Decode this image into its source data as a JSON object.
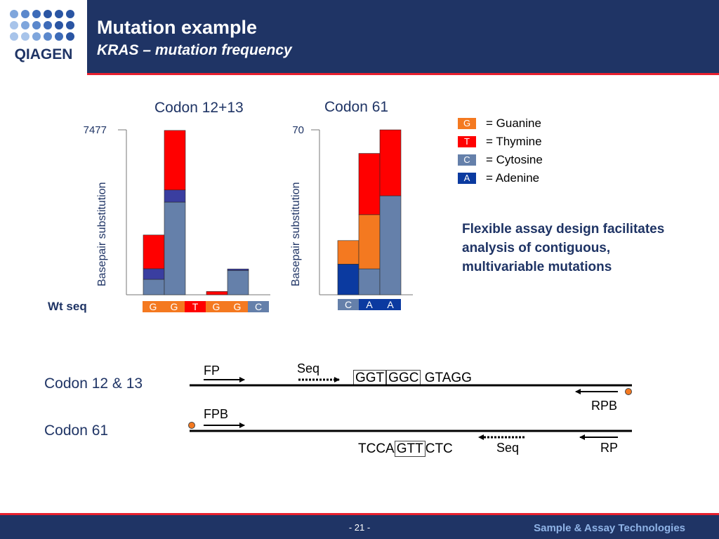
{
  "header": {
    "logo_text": "QIAGEN",
    "title": "Mutation example",
    "subtitle": "KRAS – mutation frequency",
    "colors": {
      "background": "#1f3465",
      "accent_line": "#e8202e"
    }
  },
  "footer": {
    "page_number": "- 21 -",
    "tagline": "Sample & Assay Technologies"
  },
  "legend": [
    {
      "letter": "G",
      "name": "= Guanine",
      "color": "#f47920"
    },
    {
      "letter": "T",
      "name": "= Thymine",
      "color": "#ff0000"
    },
    {
      "letter": "C",
      "name": "= Cytosine",
      "color": "#6580aa"
    },
    {
      "letter": "A",
      "name": "= Adenine",
      "color": "#0b3aa0"
    }
  ],
  "note": "Flexible assay design facilitates analysis of contiguous, multivariable mutations",
  "wt_label": "Wt seq",
  "chart_data": [
    {
      "type": "bar",
      "stacked": true,
      "title": "Codon 12+13",
      "ylabel": "Basepair substitution",
      "ymax_label": "7477",
      "ylim": [
        0,
        7477
      ],
      "categories": [
        "G",
        "G",
        "T",
        "G",
        "G",
        "C"
      ],
      "wt_colors": [
        "#f47920",
        "#f47920",
        "#ff0000",
        "#f47920",
        "#f47920",
        "#6580aa"
      ],
      "series": [
        {
          "base": "C",
          "color": "#6580aa",
          "values": [
            700,
            4200,
            0,
            0,
            1100,
            0
          ]
        },
        {
          "base": "A",
          "color": "#3a3ea0",
          "values": [
            480,
            550,
            0,
            0,
            70,
            0
          ]
        },
        {
          "base": "T",
          "color": "#ff0000",
          "values": [
            1530,
            2700,
            0,
            150,
            0,
            0
          ]
        }
      ]
    },
    {
      "type": "bar",
      "stacked": true,
      "title": "Codon 61",
      "ylabel": "Basepair substitution",
      "ymax_label": "70",
      "ylim": [
        0,
        70
      ],
      "categories": [
        "C",
        "A",
        "A"
      ],
      "wt_colors": [
        "#6580aa",
        "#0b3aa0",
        "#0b3aa0"
      ],
      "series": [
        {
          "base": "A",
          "color": "#0b3aa0",
          "values": [
            13,
            0,
            0
          ]
        },
        {
          "base": "C",
          "color": "#6580aa",
          "values": [
            0,
            11,
            42
          ]
        },
        {
          "base": "G",
          "color": "#f47920",
          "values": [
            10,
            23,
            0
          ]
        },
        {
          "base": "T",
          "color": "#ff0000",
          "values": [
            0,
            26,
            28
          ]
        }
      ]
    }
  ],
  "diagram": {
    "codon12_label": "Codon 12 & 13",
    "codon61_label": "Codon 61",
    "fp": "FP",
    "seq_top": "Seq",
    "seq_top_boxes": [
      "GGT",
      "GGC"
    ],
    "seq_top_rest": "GTAGG",
    "rpb": "RPB",
    "fpb": "FPB",
    "seq_bottom_prefix": "TCCA",
    "seq_bottom_box": "GTT",
    "seq_bottom_suffix": "CTC",
    "seq_bottom": "Seq",
    "rp": "RP",
    "probe_color": "#f47920"
  }
}
